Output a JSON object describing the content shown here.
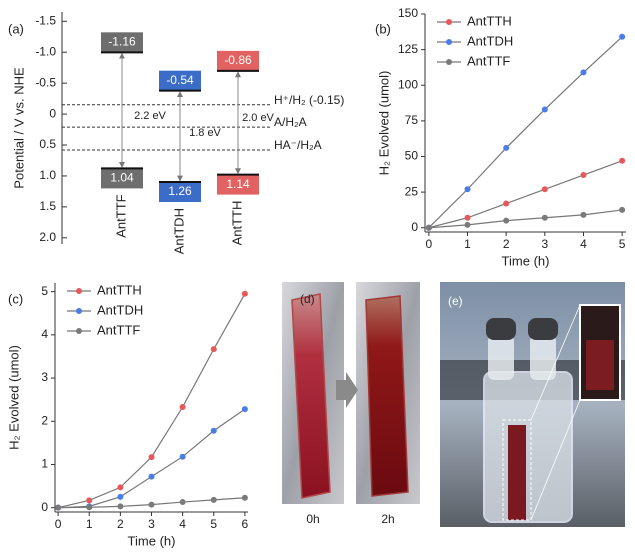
{
  "chart_data": [
    {
      "type": "energy_level",
      "panel_label": "(a)",
      "ylabel": "Potential / V vs. NHE",
      "inverted": true,
      "ylim": [
        -1.65,
        2.1
      ],
      "yticks": [
        -1.5,
        {
          "value": -1,
          "label": "-1.0"
        },
        -0.5,
        0,
        0.5,
        {
          "value": 1,
          "label": "1.0"
        },
        1.5,
        {
          "value": 2,
          "label": "2.0"
        }
      ],
      "categories": [
        "AntTTF",
        "AntTDH",
        "AntTTH"
      ],
      "colors": [
        "#6e6e6e",
        "#3b6cc8",
        "#e26262"
      ],
      "lumo": [
        -1.16,
        -0.54,
        -0.86
      ],
      "homo": [
        1.04,
        1.26,
        1.14
      ],
      "gaps": [
        "2.2 eV",
        "1.8 eV",
        "2.0 eV"
      ],
      "levels": [
        {
          "value": -0.15,
          "label": "H⁺/H₂ (-0.15)"
        },
        {
          "value": 0.21,
          "label": "A/H₂A"
        },
        {
          "value": 0.58,
          "label": "HA⁻/H₂A"
        }
      ]
    },
    {
      "type": "line",
      "panel_label": "(b)",
      "xlabel": "Time (h)",
      "ylabel": "H₂ Evolved (umol)",
      "x": [
        0,
        1,
        2,
        3,
        4,
        5
      ],
      "xlim": [
        -0.1,
        5.1
      ],
      "xticks": [
        0,
        1,
        2,
        3,
        4,
        5
      ],
      "ylim": [
        -3,
        150
      ],
      "yticks": [
        0,
        25,
        50,
        75,
        100,
        125,
        150
      ],
      "legend": "upper left",
      "series": [
        {
          "name": "AntTTH",
          "color": "#e8585a",
          "values": [
            0,
            7,
            17,
            27,
            37,
            47
          ]
        },
        {
          "name": "AntTDH",
          "color": "#4a7de8",
          "values": [
            0,
            27,
            56,
            83,
            109,
            134
          ]
        },
        {
          "name": "AntTTF",
          "color": "#7a7a7a",
          "values": [
            0,
            2,
            5,
            7,
            9,
            12.5
          ]
        }
      ]
    },
    {
      "type": "line",
      "panel_label": "(c)",
      "xlabel": "Time (h)",
      "ylabel": "H₂ Evolved (umol)",
      "x": [
        0,
        1,
        2,
        3,
        4,
        5,
        6
      ],
      "xlim": [
        -0.1,
        6.1
      ],
      "xticks": [
        0,
        1,
        2,
        3,
        4,
        5,
        6
      ],
      "ylim": [
        -0.1,
        5.2
      ],
      "yticks": [
        0,
        1,
        2,
        3,
        4,
        5
      ],
      "legend": "upper left",
      "series": [
        {
          "name": "AntTTH",
          "color": "#e8585a",
          "values": [
            0,
            0.17,
            0.47,
            1.17,
            2.33,
            3.67,
            4.95
          ]
        },
        {
          "name": "AntTDH",
          "color": "#4a7de8",
          "values": [
            0,
            0.03,
            0.25,
            0.72,
            1.18,
            1.78,
            2.28
          ]
        },
        {
          "name": "AntTTF",
          "color": "#7a7a7a",
          "values": [
            0,
            0.01,
            0.03,
            0.07,
            0.13,
            0.18,
            0.23
          ]
        }
      ]
    }
  ],
  "photos": {
    "d": {
      "panel_label": "(d)",
      "labels": [
        "0h",
        "2h"
      ]
    },
    "e": {
      "panel_label": "(e)"
    }
  }
}
